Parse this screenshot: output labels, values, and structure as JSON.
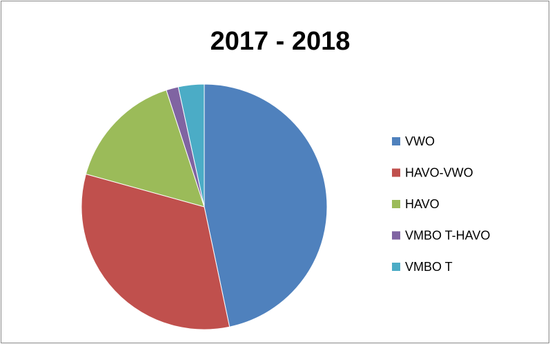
{
  "chart_data": {
    "type": "pie",
    "title": "2017 - 2018",
    "categories": [
      "VWO",
      "HAVO-VWO",
      "HAVO",
      "VMBO T-HAVO",
      "VMBO T"
    ],
    "values": [
      46.7,
      32.6,
      15.7,
      1.6,
      3.4
    ],
    "colors": [
      "#4f81bd",
      "#c0504d",
      "#9bbb59",
      "#8064a2",
      "#4bacc6"
    ],
    "legend": "right"
  }
}
